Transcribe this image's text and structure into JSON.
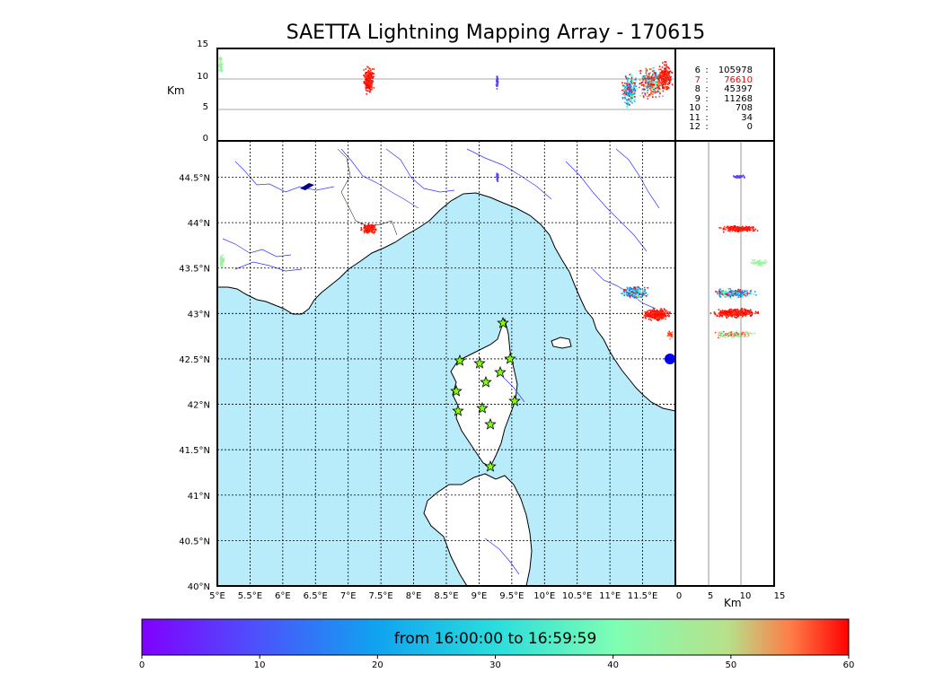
{
  "title": "SAETTA Lightning Mapping Array - 170615",
  "alt_panel": {
    "ylabel": "Km",
    "yticks": [
      "15",
      "10",
      "5",
      "0"
    ]
  },
  "side_panel": {
    "xlabel": "Km",
    "xticks": [
      "0",
      "5",
      "10",
      "15"
    ]
  },
  "map": {
    "lat_ticks": [
      "44.5°N",
      "44°N",
      "43.5°N",
      "43°N",
      "42.5°N",
      "42°N",
      "41.5°N",
      "41°N",
      "40.5°N",
      "40°N"
    ],
    "lon_ticks": [
      "5°E",
      "5.5°E",
      "6°E",
      "6.5°E",
      "7°E",
      "7.5°E",
      "8°E",
      "8.5°E",
      "9°E",
      "9.5°E",
      "10°E",
      "10.5°E",
      "11°E",
      "11.5°E"
    ],
    "colors": {
      "sea": "#b8ecfb",
      "land": "#ffffff",
      "rivers": "#3333ff",
      "stations": "#7fff00"
    }
  },
  "stats": [
    {
      "k": "6",
      "v": "105978",
      "highlight": false
    },
    {
      "k": "7",
      "v": "76610",
      "highlight": true
    },
    {
      "k": "8",
      "v": "45397",
      "highlight": false
    },
    {
      "k": "9",
      "v": "11268",
      "highlight": false
    },
    {
      "k": "10",
      "v": "708",
      "highlight": false
    },
    {
      "k": "11",
      "v": "34",
      "highlight": false
    },
    {
      "k": "12",
      "v": "0",
      "highlight": false
    }
  ],
  "colorbar": {
    "label": "from 16:00:00 to 16:59:59",
    "ticks": [
      "0",
      "10",
      "20",
      "30",
      "40",
      "50",
      "60"
    ],
    "colormap": "rainbow"
  }
}
